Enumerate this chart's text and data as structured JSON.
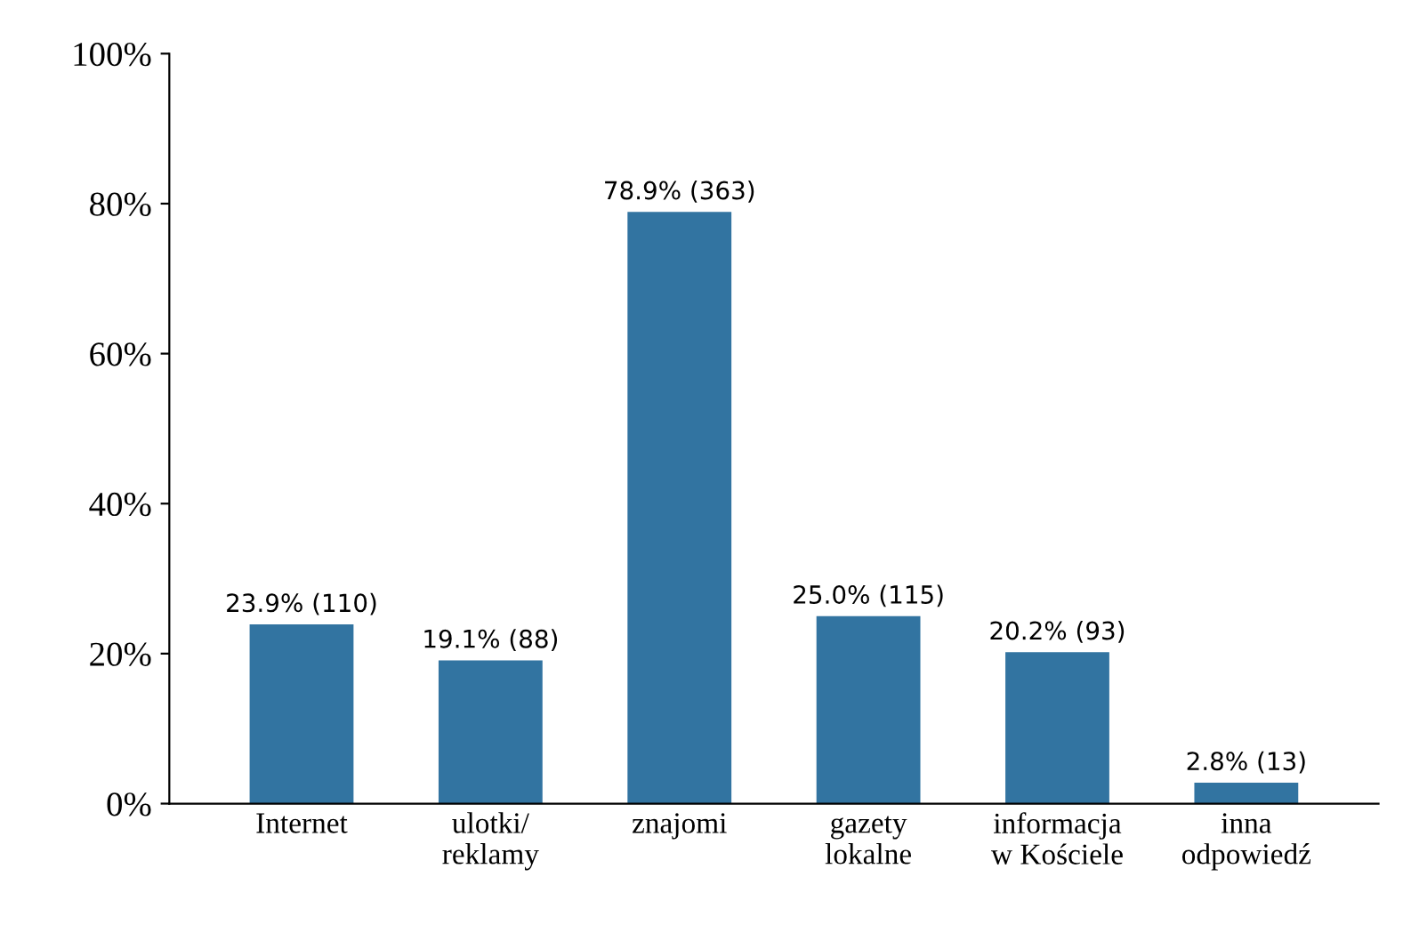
{
  "chart_data": {
    "type": "bar",
    "categories": [
      "Internet",
      "ulotki/\nreklamy",
      "znajomi",
      "gazety\nlokalne",
      "informacja\nw Kościele",
      "inna\nodpowiedź"
    ],
    "values": [
      23.9,
      19.1,
      78.9,
      25.0,
      20.2,
      2.8
    ],
    "value_labels": [
      "23.9% (110)",
      "19.1% (88)",
      "78.9% (363)",
      "25.0% (115)",
      "20.2% (93)",
      "2.8% (13)"
    ],
    "color": "#3274a1",
    "ylim": [
      0,
      100
    ],
    "yticks": [
      {
        "value": 0,
        "label": "0%"
      },
      {
        "value": 20,
        "label": "20%"
      },
      {
        "value": 40,
        "label": "40%"
      },
      {
        "value": 60,
        "label": "60%"
      },
      {
        "value": 80,
        "label": "80%"
      },
      {
        "value": 100,
        "label": "100%"
      }
    ],
    "grid": false,
    "legend": false
  }
}
